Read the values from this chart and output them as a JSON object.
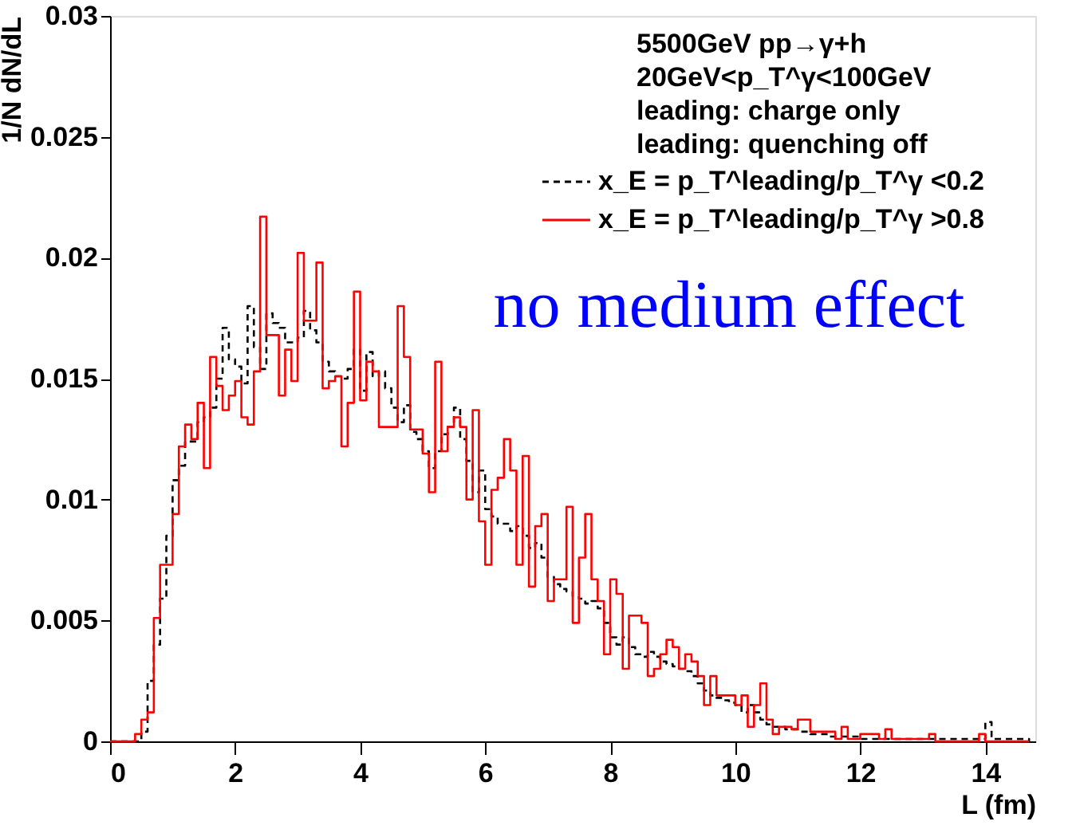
{
  "chart_data": {
    "type": "step",
    "xlabel": "L (fm)",
    "ylabel": "1/N dN/dL",
    "xlim": [
      0,
      14.8
    ],
    "xticks": [
      0,
      2,
      4,
      6,
      8,
      10,
      12,
      14
    ],
    "ylim": [
      0,
      0.03
    ],
    "yticks": [
      0,
      0.005,
      0.01,
      0.015,
      0.02,
      0.025,
      0.03
    ],
    "grid": false,
    "legend": "top right",
    "annotations": [
      "5500GeV pp→γ+h",
      "20GeV<p_T^γ<100GeV",
      "leading: charge only",
      "leading: quenching off",
      "no medium effect"
    ],
    "series": [
      {
        "name": "x_E = p_T^leading/p_T^γ <0.2",
        "color": "#000000",
        "line_style": "dashed",
        "x": [
          0,
          0.5,
          0.6,
          0.7,
          0.8,
          0.9,
          1.0,
          1.1,
          1.2,
          1.3,
          1.4,
          1.5,
          1.6,
          1.7,
          1.8,
          1.9,
          2.0,
          2.1,
          2.2,
          2.3,
          2.4,
          2.5,
          2.6,
          2.7,
          2.8,
          2.9,
          3.0,
          3.1,
          3.2,
          3.3,
          3.4,
          3.5,
          3.6,
          3.7,
          3.8,
          3.9,
          4.0,
          4.1,
          4.2,
          4.3,
          4.4,
          4.5,
          4.6,
          4.7,
          4.8,
          4.9,
          5.0,
          5.1,
          5.2,
          5.3,
          5.4,
          5.5,
          5.6,
          5.7,
          5.8,
          5.9,
          6.0,
          6.1,
          6.2,
          6.3,
          6.4,
          6.5,
          6.6,
          6.7,
          6.8,
          6.9,
          7.0,
          7.1,
          7.2,
          7.3,
          7.4,
          7.5,
          7.6,
          7.7,
          7.8,
          7.9,
          8.0,
          8.1,
          8.2,
          8.3,
          8.4,
          8.5,
          8.6,
          8.7,
          8.8,
          8.9,
          9.0,
          9.1,
          9.2,
          9.3,
          9.4,
          9.5,
          9.6,
          9.7,
          9.8,
          9.9,
          10.0,
          10.1,
          10.2,
          10.3,
          10.4,
          10.5,
          10.6,
          10.8,
          11.0,
          11.2,
          11.5,
          12.0,
          12.5,
          13.0,
          13.5,
          14.0,
          14.1,
          14.7
        ],
        "values": [
          0,
          0.0004,
          0.0025,
          0.004,
          0.0059,
          0.0085,
          0.0108,
          0.0114,
          0.0124,
          0.0124,
          0.0132,
          0.0134,
          0.0138,
          0.015,
          0.0171,
          0.0158,
          0.0155,
          0.0148,
          0.018,
          0.0163,
          0.0154,
          0.0177,
          0.0173,
          0.0171,
          0.0165,
          0.0165,
          0.0167,
          0.0178,
          0.017,
          0.0165,
          0.0157,
          0.0153,
          0.0151,
          0.015,
          0.0154,
          0.0162,
          0.0145,
          0.0161,
          0.0151,
          0.0153,
          0.0146,
          0.0138,
          0.0132,
          0.0139,
          0.0128,
          0.0125,
          0.012,
          0.0113,
          0.012,
          0.0127,
          0.013,
          0.0138,
          0.0125,
          0.0116,
          0.0103,
          0.0112,
          0.0096,
          0.0093,
          0.009,
          0.009,
          0.0087,
          0.0089,
          0.0085,
          0.008,
          0.0082,
          0.0076,
          0.0068,
          0.0065,
          0.0063,
          0.0062,
          0.006,
          0.0059,
          0.0057,
          0.0058,
          0.0055,
          0.0049,
          0.0043,
          0.004,
          0.0043,
          0.0039,
          0.0036,
          0.0035,
          0.0037,
          0.0035,
          0.0033,
          0.0032,
          0.0031,
          0.003,
          0.0029,
          0.0027,
          0.0024,
          0.0021,
          0.0019,
          0.0018,
          0.0017,
          0.0016,
          0.0015,
          0.0012,
          0.0015,
          0.0012,
          0.0009,
          0.0007,
          0.0006,
          0.0005,
          0.0004,
          0.0003,
          0.0002,
          0.0001,
          0.0001,
          0.0001,
          0.0001,
          0.0008,
          0.0001,
          0
        ]
      },
      {
        "name": "x_E = p_T^leading/p_T^γ >0.8",
        "color": "#ff0000",
        "line_style": "solid",
        "x": [
          0,
          0.4,
          0.5,
          0.6,
          0.7,
          0.8,
          1.0,
          1.1,
          1.2,
          1.3,
          1.4,
          1.5,
          1.6,
          1.7,
          1.8,
          1.9,
          2.0,
          2.1,
          2.2,
          2.3,
          2.4,
          2.5,
          2.6,
          2.7,
          2.8,
          2.9,
          3.0,
          3.1,
          3.2,
          3.3,
          3.4,
          3.5,
          3.6,
          3.7,
          3.8,
          3.9,
          4.0,
          4.1,
          4.2,
          4.3,
          4.4,
          4.5,
          4.6,
          4.7,
          4.8,
          4.9,
          5.0,
          5.1,
          5.2,
          5.3,
          5.4,
          5.5,
          5.6,
          5.7,
          5.8,
          5.9,
          6.0,
          6.1,
          6.2,
          6.3,
          6.4,
          6.5,
          6.6,
          6.7,
          6.8,
          6.9,
          7.0,
          7.1,
          7.2,
          7.3,
          7.4,
          7.5,
          7.6,
          7.7,
          7.8,
          7.9,
          8.0,
          8.1,
          8.2,
          8.3,
          8.4,
          8.5,
          8.6,
          8.7,
          8.8,
          8.9,
          9.0,
          9.1,
          9.2,
          9.3,
          9.4,
          9.5,
          9.6,
          9.7,
          9.8,
          9.9,
          10.0,
          10.1,
          10.2,
          10.3,
          10.4,
          10.5,
          10.6,
          10.7,
          10.8,
          10.9,
          11.0,
          11.2,
          11.6,
          11.7,
          11.8,
          12.0,
          12.3,
          12.4,
          12.5,
          13.1,
          13.2,
          13.9,
          14.0,
          14.7
        ],
        "values": [
          0,
          0.0003,
          0.0009,
          0.0012,
          0.0051,
          0.0073,
          0.0094,
          0.0122,
          0.0131,
          0.0125,
          0.014,
          0.0113,
          0.0159,
          0.0147,
          0.0137,
          0.0143,
          0.0149,
          0.0134,
          0.0131,
          0.0153,
          0.0217,
          0.0168,
          0.0168,
          0.0143,
          0.0162,
          0.0149,
          0.0202,
          0.0174,
          0.0174,
          0.0198,
          0.0146,
          0.0149,
          0.0151,
          0.0122,
          0.014,
          0.0186,
          0.0141,
          0.0157,
          0.0153,
          0.013,
          0.013,
          0.013,
          0.018,
          0.0159,
          0.0129,
          0.0129,
          0.0119,
          0.0103,
          0.0157,
          0.012,
          0.013,
          0.0134,
          0.013,
          0.01,
          0.0137,
          0.0091,
          0.0073,
          0.0104,
          0.0109,
          0.0125,
          0.0112,
          0.0073,
          0.0118,
          0.0064,
          0.0089,
          0.0094,
          0.0058,
          0.0067,
          0.0067,
          0.0097,
          0.0049,
          0.0076,
          0.0094,
          0.0067,
          0.0058,
          0.0036,
          0.0067,
          0.0061,
          0.003,
          0.0052,
          0.0052,
          0.0049,
          0.0027,
          0.003,
          0.0036,
          0.0042,
          0.0039,
          0.003,
          0.0036,
          0.0033,
          0.0027,
          0.0015,
          0.0027,
          0.0019,
          0.0019,
          0.0019,
          0.0015,
          0.0019,
          0.0006,
          0.0015,
          0.0024,
          0.0009,
          0.0003,
          0.0006,
          0.0006,
          0.0005,
          0.0009,
          0.0004,
          0.0001,
          0.0006,
          0.0001,
          0.0003,
          0.0001,
          0.0005,
          0.0001,
          0.0003,
          0,
          0.0003,
          0,
          0
        ]
      }
    ]
  }
}
